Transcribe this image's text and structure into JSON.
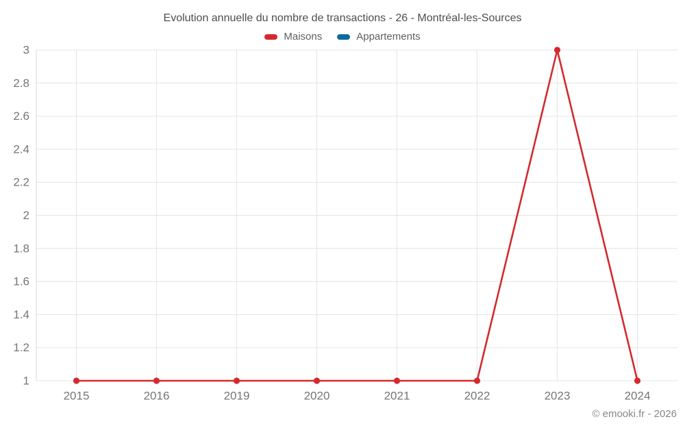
{
  "title": "Evolution annuelle du nombre de transactions - 26 - Montréal-les-Sources",
  "legend": {
    "items": [
      {
        "label": "Maisons",
        "color": "#d4292e"
      },
      {
        "label": "Appartements",
        "color": "#0d6a9e"
      }
    ]
  },
  "watermark": "© emooki.fr - 2026",
  "chart_data": {
    "type": "line",
    "title": "Evolution annuelle du nombre de transactions - 26 - Montréal-les-Sources",
    "categories": [
      "2015",
      "2016",
      "2019",
      "2020",
      "2021",
      "2022",
      "2023",
      "2024"
    ],
    "series": [
      {
        "name": "Maisons",
        "color": "#d4292e",
        "values": [
          1,
          1,
          1,
          1,
          1,
          1,
          3,
          1
        ]
      },
      {
        "name": "Appartements",
        "color": "#0d6a9e",
        "values": []
      }
    ],
    "xlabel": "",
    "ylabel": "",
    "ylim": [
      1,
      3
    ],
    "ytick_step": 0.2,
    "yticks": [
      1,
      1.2,
      1.4,
      1.6,
      1.8,
      2,
      2.2,
      2.4,
      2.6,
      2.8,
      3
    ],
    "grid": true,
    "legend_position": "top"
  },
  "colors": {
    "background": "#ffffff",
    "grid": "#e4e4e4",
    "axis_line": "#d9d9d9",
    "axis_text": "#757575",
    "title_text": "#4e4e4e",
    "legend_text": "#5f5f5f",
    "watermark_text": "#878787"
  }
}
